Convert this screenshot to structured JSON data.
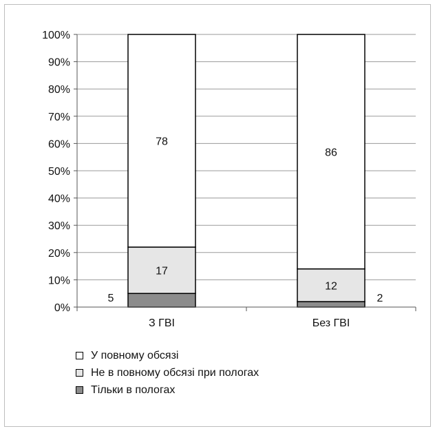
{
  "chart_data": {
    "type": "bar",
    "stacked": "percent",
    "categories": [
      "З ГВІ",
      "Без ГВІ"
    ],
    "ylim": [
      0,
      100
    ],
    "yticks": [
      "0%",
      "10%",
      "20%",
      "30%",
      "40%",
      "50%",
      "60%",
      "70%",
      "80%",
      "90%",
      "100%"
    ],
    "grid": true,
    "legend_position": "bottom",
    "series": [
      {
        "name": "Тільки в пологах",
        "values": [
          5,
          2
        ],
        "color": "#8c8c8c"
      },
      {
        "name": "Не в повному обсязі при пологах",
        "values": [
          17,
          12
        ],
        "color": "#e6e6e6"
      },
      {
        "name": "У повному обсязі",
        "values": [
          78,
          86
        ],
        "color": "#ffffff"
      }
    ],
    "data_labels": [
      [
        "5",
        "2"
      ],
      [
        "17",
        "12"
      ],
      [
        "78",
        "86"
      ]
    ]
  }
}
